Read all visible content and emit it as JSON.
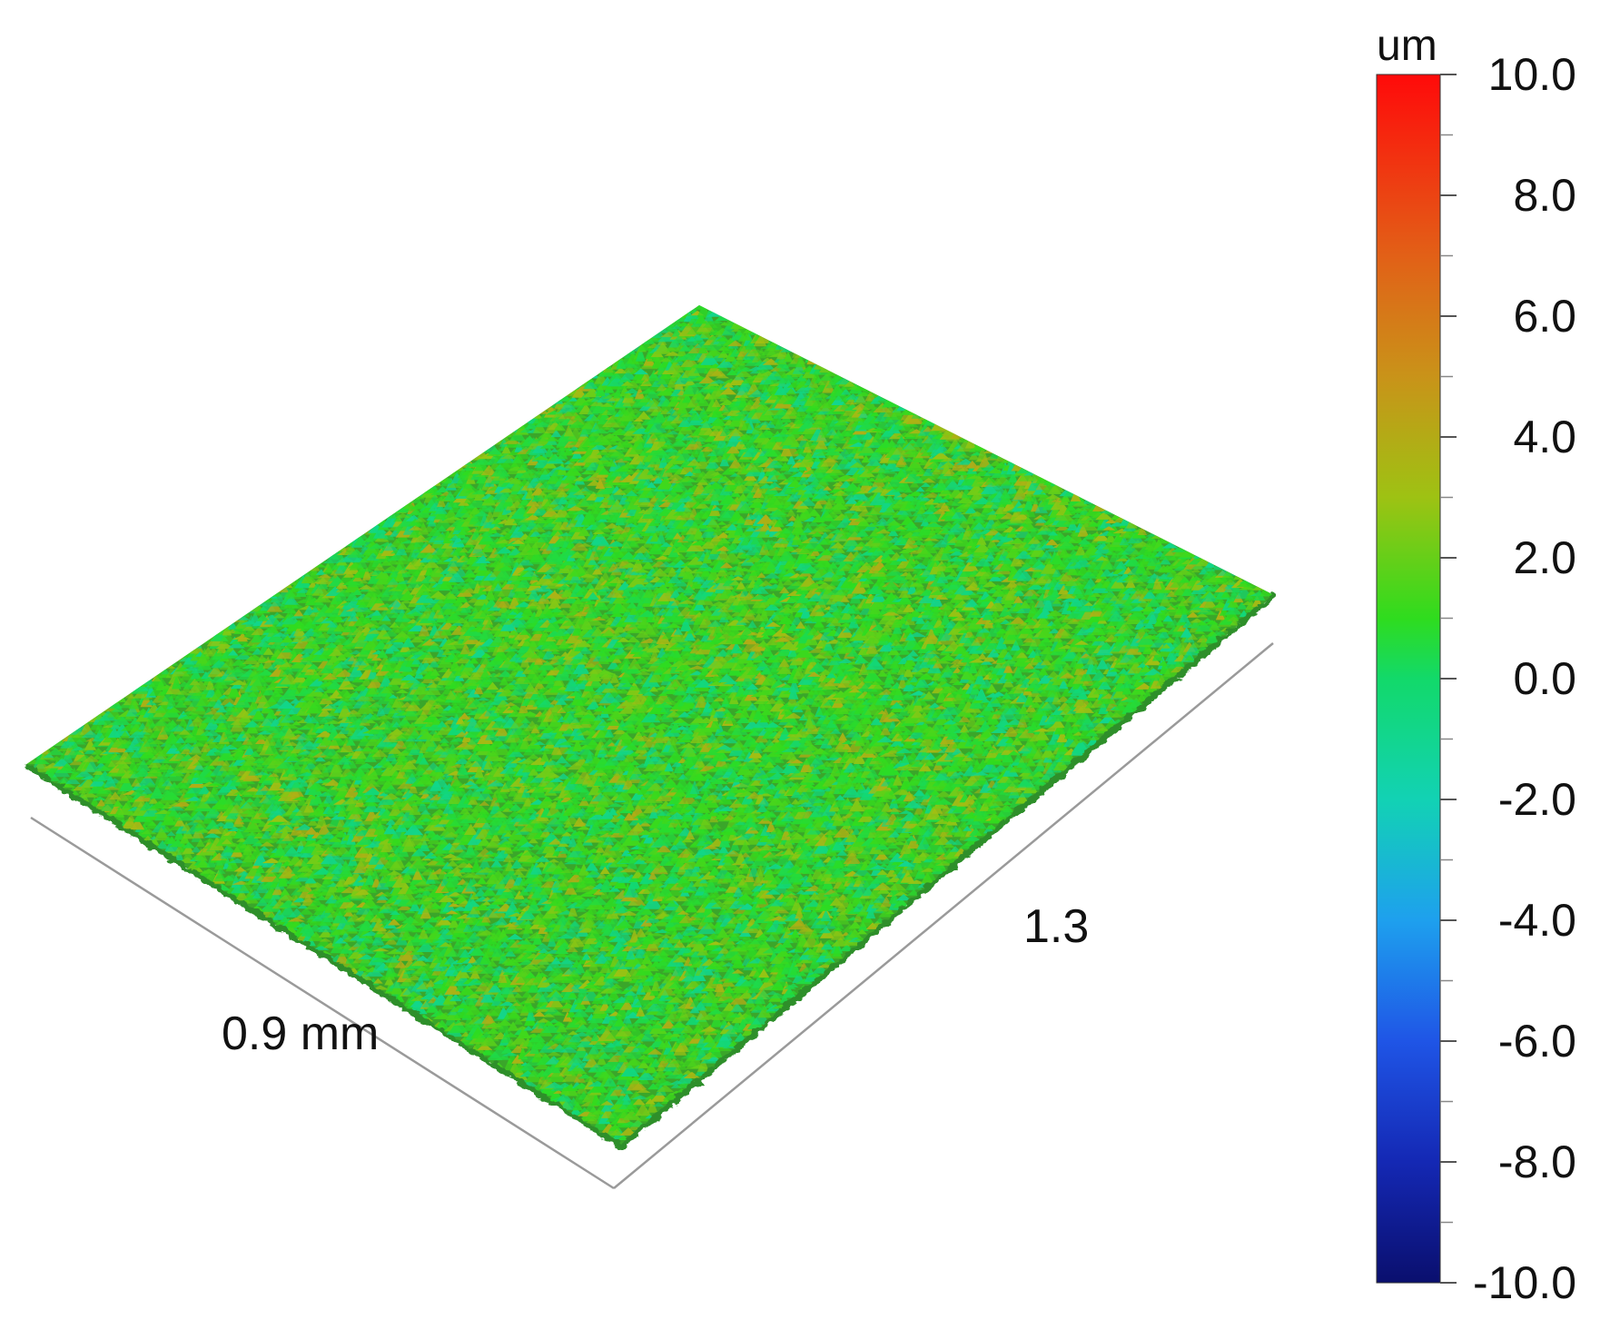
{
  "chart_data": {
    "type": "heatmap",
    "description_kind": "3d-surface",
    "x_axis_label": "0.9 mm",
    "y_axis_label": "1.3",
    "colorbar": {
      "unit": "um",
      "min": -10.0,
      "max": 10.0,
      "ticks": [
        "10.0",
        "8.0",
        "6.0",
        "4.0",
        "2.0",
        "0.0",
        "-2.0",
        "-4.0",
        "-6.0",
        "-8.0",
        "-10.0"
      ],
      "tick_values": [
        10,
        8,
        6,
        4,
        2,
        0,
        -2,
        -4,
        -6,
        -8,
        -10
      ],
      "minor_ticks_per_interval": 1,
      "colormap_stops": [
        {
          "value": -10,
          "color": "#0a0f6e"
        },
        {
          "value": -8,
          "color": "#1428b4"
        },
        {
          "value": -6,
          "color": "#1f55e6"
        },
        {
          "value": -4,
          "color": "#1ea0ee"
        },
        {
          "value": -2,
          "color": "#12d2b4"
        },
        {
          "value": 0,
          "color": "#12d96a"
        },
        {
          "value": 1,
          "color": "#2fdc1e"
        },
        {
          "value": 3,
          "color": "#9ec213"
        },
        {
          "value": 5,
          "color": "#c99319"
        },
        {
          "value": 7,
          "color": "#e26017"
        },
        {
          "value": 10,
          "color": "#ff0a0a"
        }
      ]
    },
    "surface": {
      "height_range_um": [
        -2.5,
        4.0
      ],
      "dominant_color": "#3aa62a"
    }
  }
}
